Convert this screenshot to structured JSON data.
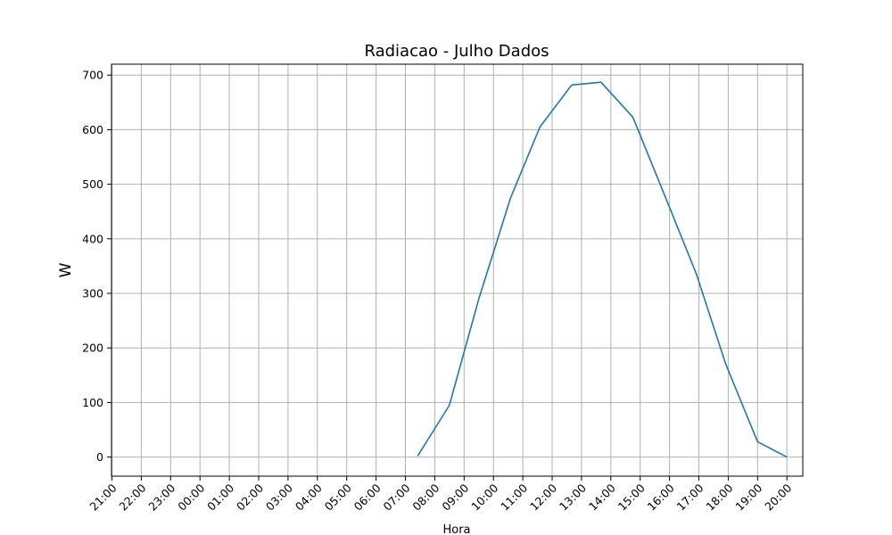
{
  "chart_data": {
    "type": "line",
    "title": "Radiacao - Julho Dados",
    "xlabel": "Hora",
    "ylabel": "W",
    "x_ticks": [
      "21:00",
      "22:00",
      "23:00",
      "00:00",
      "01:00",
      "02:00",
      "03:00",
      "04:00",
      "05:00",
      "06:00",
      "07:00",
      "08:00",
      "09:00",
      "10:00",
      "11:00",
      "12:00",
      "13:00",
      "14:00",
      "15:00",
      "16:00",
      "17:00",
      "18:00",
      "19:00",
      "20:00"
    ],
    "y_ticks": [
      0,
      100,
      200,
      300,
      400,
      500,
      600,
      700
    ],
    "xlim": [
      "21:00",
      "20:00"
    ],
    "ylim": [
      -35,
      720
    ],
    "grid": true,
    "series": [
      {
        "color": "#1f77b4",
        "x": [
          "07:25",
          "08:30",
          "09:30",
          "10:35",
          "11:35",
          "12:40",
          "13:40",
          "14:45",
          "15:50",
          "16:55",
          "17:55",
          "19:00",
          "20:00"
        ],
        "y": [
          2,
          95,
          290,
          475,
          605,
          682,
          687,
          623,
          480,
          335,
          170,
          28,
          0
        ]
      }
    ]
  }
}
